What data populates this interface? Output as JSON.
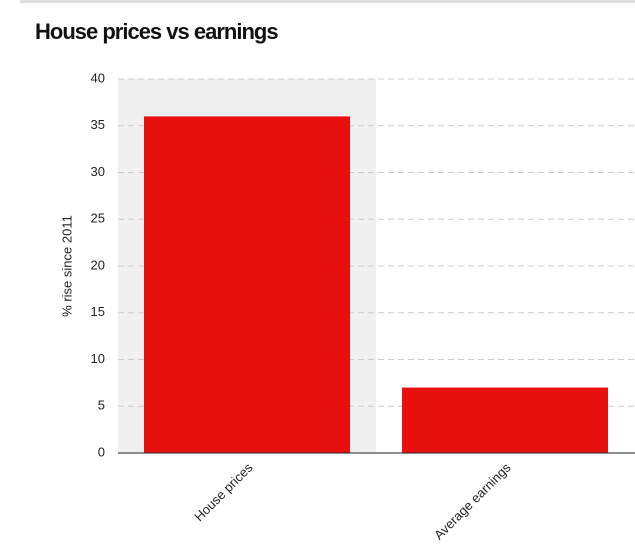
{
  "chart_data": {
    "type": "bar",
    "title": "House prices vs earnings",
    "y_label": "% rise since 2011",
    "categories": [
      "House prices",
      "Average earnings"
    ],
    "values": [
      36,
      7
    ],
    "color": "#e8100f",
    "ylim": [
      0,
      40
    ],
    "yticks": [
      0,
      5,
      10,
      15,
      20,
      25,
      30,
      35,
      40
    ],
    "grid": true
  }
}
